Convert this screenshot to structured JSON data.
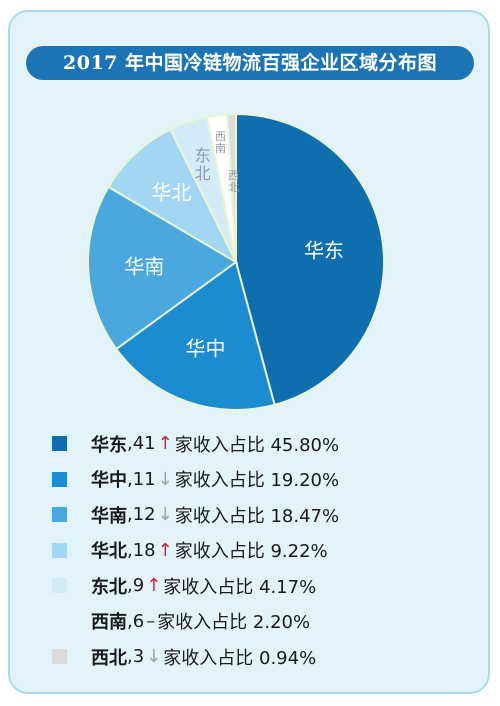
{
  "title": "2017 年中国冷链物流百强企业区域分布图",
  "chart_data": {
    "type": "pie",
    "title": "2017 年中国冷链物流百强企业区域分布图",
    "categories": [
      "华东",
      "华中",
      "华南",
      "华北",
      "东北",
      "西南",
      "西北"
    ],
    "values": [
      45.8,
      19.2,
      18.47,
      9.22,
      4.17,
      2.2,
      0.94
    ],
    "counts": [
      41,
      11,
      12,
      18,
      9,
      6,
      3
    ],
    "trend": [
      "up",
      "down",
      "down",
      "up",
      "up",
      "flat",
      "down"
    ],
    "slice_labels": [
      "华东",
      "华中",
      "华南",
      "华北",
      "东北",
      "西南",
      "西北"
    ],
    "colors": [
      "#0f6eae",
      "#1d8bd0",
      "#4aa8de",
      "#a2d6f3",
      "#d3ecf8",
      "#ffffff",
      "#dcdcdc"
    ],
    "unit": "%"
  },
  "legend": {
    "items": [
      {
        "region": "华东",
        "count_text": "41",
        "arrow": "↑",
        "trend": "up",
        "text": "家收入占比 45.80%"
      },
      {
        "region": "华中",
        "count_text": "11",
        "arrow": "↓",
        "trend": "down",
        "text": "家收入占比 19.20%"
      },
      {
        "region": "华南",
        "count_text": "12",
        "arrow": "↓",
        "trend": "down",
        "text": "家收入占比 18.47%"
      },
      {
        "region": "华北",
        "count_text": "18",
        "arrow": "↑",
        "trend": "up",
        "text": "家收入占比 9.22%"
      },
      {
        "region": "东北",
        "count_text": "9",
        "arrow": "↑",
        "trend": "up",
        "text": "家收入占比 4.17%"
      },
      {
        "region": "西南",
        "count_text": "6",
        "arrow": "–",
        "trend": "flat",
        "text": "家收入占比 2.20%"
      },
      {
        "region": "西北",
        "count_text": "3",
        "arrow": "↓",
        "trend": "down",
        "text": "家收入占比 0.94%"
      }
    ]
  }
}
